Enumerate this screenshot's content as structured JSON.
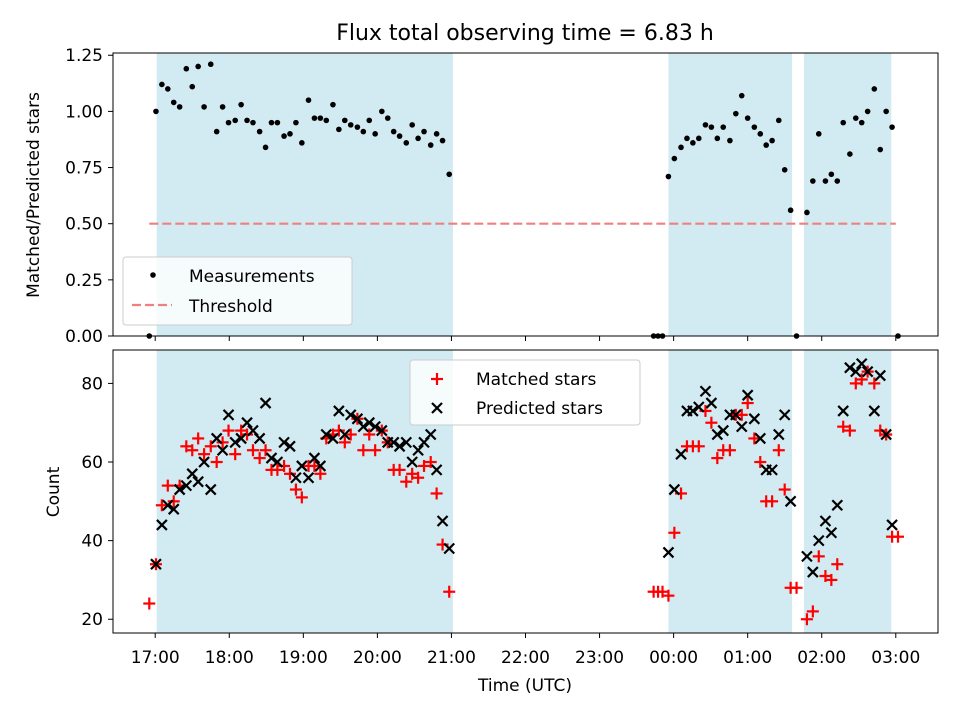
{
  "chart_data": {
    "title": "Flux total observing time = 6.83 h",
    "xlabel": "Time (UTC)",
    "time_unit": "hours since 17:00 UTC",
    "xlim": [
      -0.57,
      10.57
    ],
    "xticks": [
      {
        "t": 0,
        "label": "17:00"
      },
      {
        "t": 1,
        "label": "18:00"
      },
      {
        "t": 2,
        "label": "19:00"
      },
      {
        "t": 3,
        "label": "20:00"
      },
      {
        "t": 4,
        "label": "21:00"
      },
      {
        "t": 5,
        "label": "22:00"
      },
      {
        "t": 6,
        "label": "23:00"
      },
      {
        "t": 7,
        "label": "00:00"
      },
      {
        "t": 8,
        "label": "01:00"
      },
      {
        "t": 9,
        "label": "02:00"
      },
      {
        "t": 10,
        "label": "03:00"
      }
    ],
    "shaded_intervals": [
      [
        0.02,
        4.02
      ],
      [
        6.93,
        8.6
      ],
      [
        8.76,
        9.94
      ]
    ],
    "colors": {
      "shade": "#add8e6",
      "threshold": "#f08080",
      "matched": "#ff0000",
      "predicted": "#000000",
      "measurement": "#000000"
    },
    "top": {
      "type": "scatter",
      "ylabel": "Matched/Predicted stars",
      "ylim": [
        0,
        1.26
      ],
      "yticks": [
        "0.00",
        "0.25",
        "0.50",
        "0.75",
        "1.00",
        "1.25"
      ],
      "threshold": {
        "value": 0.5,
        "x_range": [
          -0.08,
          10.0
        ]
      },
      "legend": {
        "position": "lower-left",
        "items": [
          "Measurements",
          "Threshold"
        ]
      },
      "measurements": [
        [
          -0.08,
          0.0
        ],
        [
          0.01,
          1.0
        ],
        [
          0.09,
          1.12
        ],
        [
          0.17,
          1.1
        ],
        [
          0.25,
          1.04
        ],
        [
          0.33,
          1.02
        ],
        [
          0.42,
          1.19
        ],
        [
          0.5,
          1.11
        ],
        [
          0.58,
          1.2
        ],
        [
          0.66,
          1.02
        ],
        [
          0.75,
          1.21
        ],
        [
          0.83,
          0.91
        ],
        [
          0.91,
          1.02
        ],
        [
          0.99,
          0.95
        ],
        [
          1.08,
          0.96
        ],
        [
          1.16,
          1.03
        ],
        [
          1.24,
          0.96
        ],
        [
          1.32,
          0.95
        ],
        [
          1.41,
          0.91
        ],
        [
          1.49,
          0.84
        ],
        [
          1.57,
          0.95
        ],
        [
          1.65,
          0.95
        ],
        [
          1.74,
          0.89
        ],
        [
          1.82,
          0.9
        ],
        [
          1.9,
          0.95
        ],
        [
          1.98,
          0.86
        ],
        [
          2.07,
          1.05
        ],
        [
          2.15,
          0.97
        ],
        [
          2.23,
          0.97
        ],
        [
          2.31,
          0.96
        ],
        [
          2.4,
          1.03
        ],
        [
          2.48,
          0.92
        ],
        [
          2.56,
          0.96
        ],
        [
          2.64,
          0.94
        ],
        [
          2.73,
          0.93
        ],
        [
          2.81,
          0.91
        ],
        [
          2.89,
          0.96
        ],
        [
          2.97,
          0.9
        ],
        [
          3.06,
          1.0
        ],
        [
          3.14,
          0.97
        ],
        [
          3.22,
          0.91
        ],
        [
          3.3,
          0.89
        ],
        [
          3.39,
          0.86
        ],
        [
          3.47,
          0.94
        ],
        [
          3.55,
          0.88
        ],
        [
          3.63,
          0.91
        ],
        [
          3.72,
          0.85
        ],
        [
          3.8,
          0.9
        ],
        [
          3.88,
          0.87
        ],
        [
          3.97,
          0.72
        ],
        [
          6.73,
          0.0
        ],
        [
          6.79,
          0.0
        ],
        [
          6.85,
          0.0
        ],
        [
          6.93,
          0.71
        ],
        [
          7.01,
          0.79
        ],
        [
          7.1,
          0.84
        ],
        [
          7.18,
          0.88
        ],
        [
          7.26,
          0.86
        ],
        [
          7.34,
          0.88
        ],
        [
          7.43,
          0.94
        ],
        [
          7.51,
          0.93
        ],
        [
          7.59,
          0.88
        ],
        [
          7.67,
          0.93
        ],
        [
          7.76,
          0.87
        ],
        [
          7.84,
          0.99
        ],
        [
          7.92,
          1.07
        ],
        [
          8.0,
          0.97
        ],
        [
          8.09,
          0.93
        ],
        [
          8.17,
          0.9
        ],
        [
          8.25,
          0.85
        ],
        [
          8.33,
          0.87
        ],
        [
          8.42,
          0.96
        ],
        [
          8.5,
          0.74
        ],
        [
          8.58,
          0.56
        ],
        [
          8.66,
          0.0
        ],
        [
          8.8,
          0.55
        ],
        [
          8.88,
          0.69
        ],
        [
          8.96,
          0.9
        ],
        [
          9.05,
          0.69
        ],
        [
          9.13,
          0.72
        ],
        [
          9.21,
          0.69
        ],
        [
          9.29,
          0.95
        ],
        [
          9.38,
          0.81
        ],
        [
          9.46,
          0.97
        ],
        [
          9.54,
          0.95
        ],
        [
          9.62,
          1.0
        ],
        [
          9.71,
          1.1
        ],
        [
          9.79,
          0.83
        ],
        [
          9.87,
          1.0
        ],
        [
          9.95,
          0.93
        ],
        [
          10.03,
          0.0
        ]
      ]
    },
    "bottom": {
      "type": "scatter",
      "ylabel": "Count",
      "ylim": [
        16.5,
        88.5
      ],
      "yticks": [
        "20",
        "40",
        "60",
        "80"
      ],
      "legend": {
        "position": "top-center",
        "items": [
          "Matched stars",
          "Predicted stars"
        ]
      },
      "series": [
        {
          "name": "Matched stars",
          "marker": "+",
          "points": [
            [
              -0.08,
              24
            ],
            [
              0.01,
              34
            ],
            [
              0.09,
              49
            ],
            [
              0.17,
              54
            ],
            [
              0.25,
              50
            ],
            [
              0.33,
              54
            ],
            [
              0.42,
              64
            ],
            [
              0.5,
              63
            ],
            [
              0.58,
              66
            ],
            [
              0.66,
              62
            ],
            [
              0.75,
              64
            ],
            [
              0.83,
              60
            ],
            [
              0.91,
              65
            ],
            [
              0.99,
              68
            ],
            [
              1.08,
              62
            ],
            [
              1.16,
              68
            ],
            [
              1.24,
              67
            ],
            [
              1.32,
              63
            ],
            [
              1.41,
              61
            ],
            [
              1.49,
              63
            ],
            [
              1.57,
              58
            ],
            [
              1.65,
              58
            ],
            [
              1.74,
              59
            ],
            [
              1.82,
              57
            ],
            [
              1.9,
              53
            ],
            [
              1.98,
              51
            ],
            [
              2.07,
              59
            ],
            [
              2.15,
              59
            ],
            [
              2.23,
              57
            ],
            [
              2.31,
              66
            ],
            [
              2.4,
              67
            ],
            [
              2.48,
              68
            ],
            [
              2.56,
              65
            ],
            [
              2.64,
              67
            ],
            [
              2.73,
              71
            ],
            [
              2.81,
              63
            ],
            [
              2.89,
              67
            ],
            [
              2.97,
              63
            ],
            [
              3.06,
              68
            ],
            [
              3.14,
              65
            ],
            [
              3.22,
              58
            ],
            [
              3.3,
              58
            ],
            [
              3.39,
              55
            ],
            [
              3.47,
              57
            ],
            [
              3.55,
              56
            ],
            [
              3.63,
              59
            ],
            [
              3.72,
              60
            ],
            [
              3.8,
              52
            ],
            [
              3.88,
              39
            ],
            [
              3.97,
              27
            ],
            [
              6.73,
              27
            ],
            [
              6.79,
              27
            ],
            [
              6.85,
              27
            ],
            [
              6.93,
              26
            ],
            [
              7.01,
              42
            ],
            [
              7.1,
              52
            ],
            [
              7.18,
              64
            ],
            [
              7.26,
              64
            ],
            [
              7.34,
              64
            ],
            [
              7.43,
              73
            ],
            [
              7.51,
              70
            ],
            [
              7.59,
              61
            ],
            [
              7.67,
              63
            ],
            [
              7.76,
              63
            ],
            [
              7.84,
              72
            ],
            [
              7.92,
              72
            ],
            [
              8.0,
              75
            ],
            [
              8.09,
              66
            ],
            [
              8.17,
              60
            ],
            [
              8.25,
              50
            ],
            [
              8.33,
              50
            ],
            [
              8.42,
              63
            ],
            [
              8.5,
              53
            ],
            [
              8.58,
              28
            ],
            [
              8.66,
              28
            ],
            [
              8.8,
              20
            ],
            [
              8.88,
              22
            ],
            [
              8.96,
              36
            ],
            [
              9.05,
              31
            ],
            [
              9.13,
              30
            ],
            [
              9.21,
              34
            ],
            [
              9.29,
              69
            ],
            [
              9.38,
              68
            ],
            [
              9.46,
              80
            ],
            [
              9.54,
              81
            ],
            [
              9.62,
              83
            ],
            [
              9.71,
              80
            ],
            [
              9.79,
              68
            ],
            [
              9.87,
              67
            ],
            [
              9.95,
              41
            ],
            [
              10.03,
              41
            ]
          ]
        },
        {
          "name": "Predicted stars",
          "marker": "x",
          "points": [
            [
              0.01,
              34
            ],
            [
              0.09,
              44
            ],
            [
              0.17,
              49
            ],
            [
              0.25,
              48
            ],
            [
              0.33,
              53
            ],
            [
              0.42,
              54
            ],
            [
              0.5,
              57
            ],
            [
              0.58,
              55
            ],
            [
              0.66,
              60
            ],
            [
              0.75,
              53
            ],
            [
              0.83,
              66
            ],
            [
              0.91,
              63
            ],
            [
              0.99,
              72
            ],
            [
              1.08,
              65
            ],
            [
              1.16,
              66
            ],
            [
              1.24,
              70
            ],
            [
              1.32,
              68
            ],
            [
              1.41,
              66
            ],
            [
              1.49,
              75
            ],
            [
              1.57,
              61
            ],
            [
              1.65,
              60
            ],
            [
              1.74,
              65
            ],
            [
              1.82,
              64
            ],
            [
              1.9,
              56
            ],
            [
              1.98,
              59
            ],
            [
              2.07,
              56
            ],
            [
              2.15,
              61
            ],
            [
              2.23,
              59
            ],
            [
              2.31,
              67
            ],
            [
              2.4,
              66
            ],
            [
              2.48,
              73
            ],
            [
              2.56,
              67
            ],
            [
              2.64,
              72
            ],
            [
              2.73,
              71
            ],
            [
              2.81,
              69
            ],
            [
              2.89,
              70
            ],
            [
              2.97,
              69
            ],
            [
              3.06,
              68
            ],
            [
              3.14,
              65
            ],
            [
              3.22,
              65
            ],
            [
              3.3,
              64
            ],
            [
              3.39,
              65
            ],
            [
              3.47,
              60
            ],
            [
              3.55,
              63
            ],
            [
              3.63,
              65
            ],
            [
              3.72,
              67
            ],
            [
              3.8,
              58
            ],
            [
              3.88,
              45
            ],
            [
              3.97,
              38
            ],
            [
              6.93,
              37
            ],
            [
              7.01,
              53
            ],
            [
              7.1,
              62
            ],
            [
              7.18,
              73
            ],
            [
              7.26,
              73
            ],
            [
              7.34,
              74
            ],
            [
              7.43,
              78
            ],
            [
              7.51,
              75
            ],
            [
              7.59,
              67
            ],
            [
              7.67,
              68
            ],
            [
              7.76,
              72
            ],
            [
              7.84,
              72
            ],
            [
              7.92,
              69
            ],
            [
              8.0,
              77
            ],
            [
              8.09,
              71
            ],
            [
              8.17,
              66
            ],
            [
              8.25,
              58
            ],
            [
              8.33,
              58
            ],
            [
              8.42,
              67
            ],
            [
              8.5,
              72
            ],
            [
              8.58,
              50
            ],
            [
              8.8,
              36
            ],
            [
              8.88,
              32
            ],
            [
              8.96,
              40
            ],
            [
              9.05,
              45
            ],
            [
              9.13,
              42
            ],
            [
              9.21,
              49
            ],
            [
              9.29,
              73
            ],
            [
              9.38,
              84
            ],
            [
              9.46,
              83
            ],
            [
              9.54,
              85
            ],
            [
              9.62,
              83
            ],
            [
              9.71,
              73
            ],
            [
              9.79,
              82
            ],
            [
              9.87,
              67
            ],
            [
              9.95,
              44
            ]
          ]
        }
      ]
    }
  }
}
